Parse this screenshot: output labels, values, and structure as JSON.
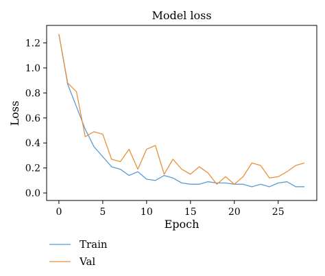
{
  "chart_data": {
    "type": "line",
    "title": "Model loss",
    "xlabel": "Epoch",
    "ylabel": "Loss",
    "xlim": [
      -1.4,
      29.4
    ],
    "ylim": [
      -0.06,
      1.34
    ],
    "xticks": [
      0,
      5,
      10,
      15,
      20,
      25
    ],
    "yticks": [
      0.0,
      0.2,
      0.4,
      0.6,
      0.8,
      1.0,
      1.2
    ],
    "ytick_labels": [
      "0.0",
      "0.2",
      "0.4",
      "0.6",
      "0.8",
      "1.0",
      "1.2"
    ],
    "grid": false,
    "legend_position": "bottom-left, below plot",
    "x": [
      0,
      1,
      2,
      3,
      4,
      5,
      6,
      7,
      8,
      9,
      10,
      11,
      12,
      13,
      14,
      15,
      16,
      17,
      18,
      19,
      20,
      21,
      22,
      23,
      24,
      25,
      26,
      27,
      28
    ],
    "series": [
      {
        "name": "Train",
        "color": "#5a9bd4",
        "values": [
          1.27,
          0.87,
          0.69,
          0.51,
          0.37,
          0.29,
          0.21,
          0.19,
          0.14,
          0.17,
          0.11,
          0.1,
          0.14,
          0.12,
          0.08,
          0.07,
          0.07,
          0.09,
          0.08,
          0.08,
          0.07,
          0.07,
          0.05,
          0.07,
          0.05,
          0.08,
          0.09,
          0.05,
          0.05
        ]
      },
      {
        "name": "Val",
        "color": "#e8913a",
        "values": [
          1.27,
          0.88,
          0.81,
          0.45,
          0.49,
          0.47,
          0.27,
          0.25,
          0.35,
          0.19,
          0.35,
          0.38,
          0.15,
          0.27,
          0.19,
          0.15,
          0.21,
          0.16,
          0.07,
          0.13,
          0.07,
          0.13,
          0.24,
          0.22,
          0.12,
          0.13,
          0.17,
          0.22,
          0.24
        ]
      }
    ]
  }
}
